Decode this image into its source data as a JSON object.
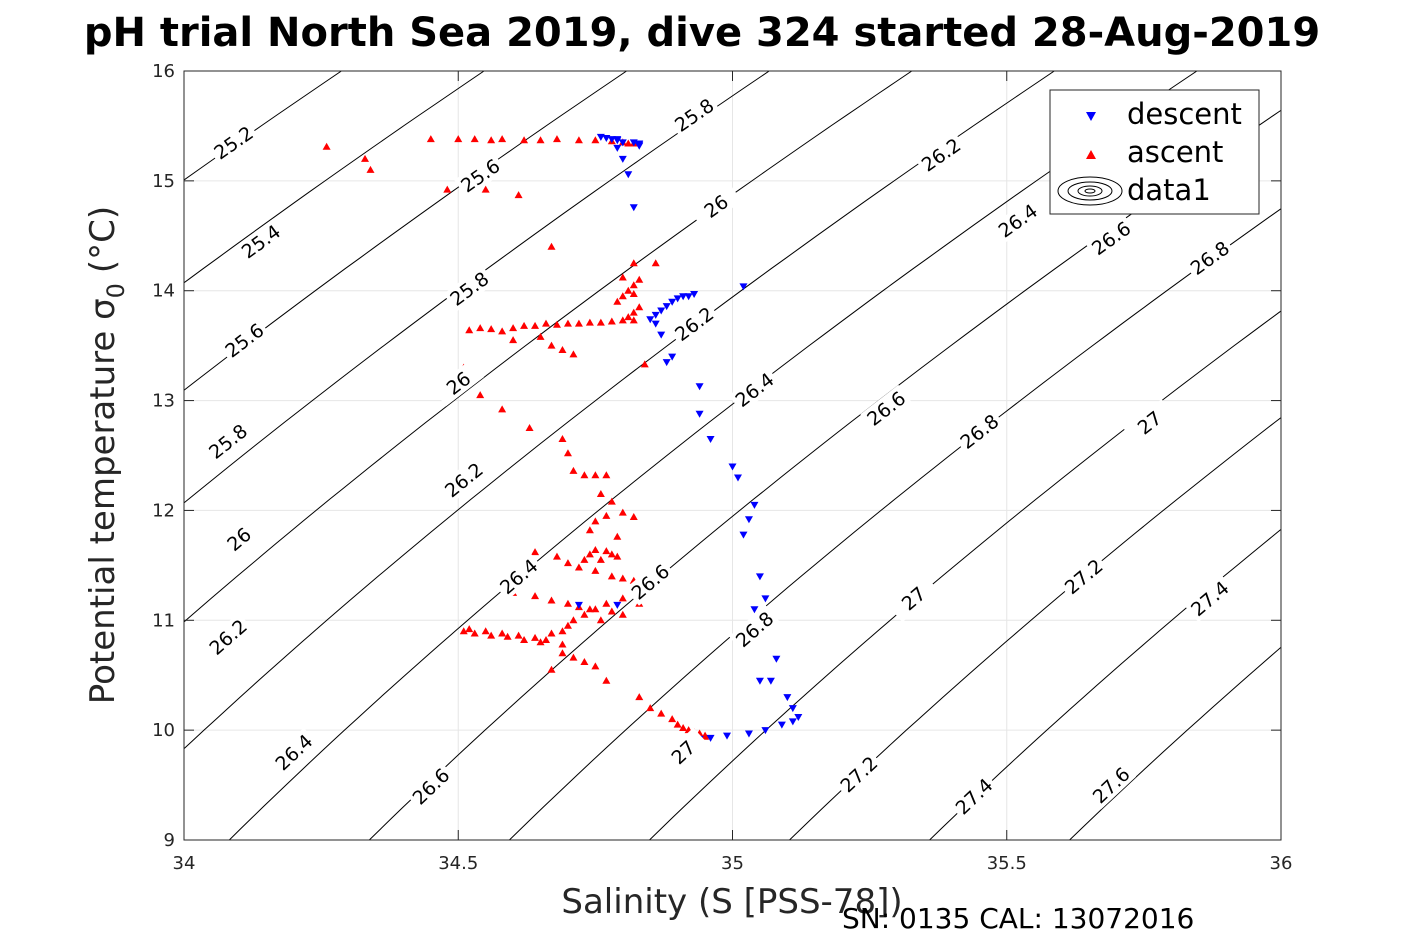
{
  "chart_data": {
    "type": "scatter",
    "title": "pH trial North Sea 2019, dive 324 started 28-Aug-2019",
    "xlabel": "Salinity (S [PSS-78])",
    "ylabel": "Potential temperature σ",
    "ylabel_subscript": "0",
    "ylabel_unit": "(°C)",
    "footer": "SN: 0135  CAL: 13072016",
    "xlim": [
      34,
      36
    ],
    "ylim": [
      9,
      16
    ],
    "xticks": [
      34,
      34.5,
      35,
      35.5,
      36
    ],
    "yticks": [
      9,
      10,
      11,
      12,
      13,
      14,
      15,
      16
    ],
    "xtick_labels": [
      "34",
      "34.5",
      "35",
      "35.5",
      "36"
    ],
    "ytick_labels": [
      "9",
      "10",
      "11",
      "12",
      "13",
      "14",
      "15",
      "16"
    ],
    "grid": true,
    "legend_position": "top-right",
    "legend": [
      "descent",
      "ascent",
      "data1"
    ],
    "colors": {
      "descent": "#0000ff",
      "ascent": "#ff0000",
      "contour": "#000000",
      "grid": "#e6e6e6"
    },
    "series": [
      {
        "name": "descent",
        "marker": "triangle-down",
        "x": [
          34.76,
          34.77,
          34.78,
          34.79,
          34.8,
          34.79,
          34.8,
          34.81,
          34.82,
          34.83,
          34.83,
          34.79,
          34.82,
          34.83,
          35.02,
          34.85,
          34.86,
          34.87,
          34.88,
          34.89,
          34.9,
          34.91,
          34.92,
          34.93,
          34.86,
          34.88,
          34.89,
          34.87,
          34.94,
          34.94,
          34.96,
          35.01,
          35.0,
          35.04,
          35.03,
          35.02,
          35.05,
          35.06,
          35.05,
          35.04,
          35.05,
          35.04,
          35.08,
          35.05,
          35.07,
          35.1,
          35.11,
          35.12,
          35.11,
          35.09,
          35.06,
          35.03,
          34.99,
          34.96,
          34.94,
          34.72,
          34.79
        ],
        "y": [
          15.4,
          15.39,
          15.38,
          15.38,
          15.35,
          15.3,
          15.2,
          15.06,
          14.76,
          15.32,
          15.34,
          15.37,
          15.35,
          15.33,
          14.04,
          13.74,
          13.78,
          13.82,
          13.86,
          13.9,
          13.93,
          13.95,
          13.95,
          13.97,
          13.7,
          13.35,
          13.4,
          13.6,
          13.13,
          12.88,
          12.65,
          12.3,
          12.4,
          12.05,
          11.92,
          11.78,
          11.4,
          11.2,
          11.0,
          10.85,
          10.9,
          11.1,
          10.65,
          10.45,
          10.45,
          10.3,
          10.2,
          10.12,
          10.08,
          10.05,
          10.0,
          9.97,
          9.95,
          9.93,
          9.92,
          11.14,
          11.14
        ]
      },
      {
        "name": "ascent",
        "marker": "triangle-up",
        "x": [
          34.26,
          34.33,
          34.34,
          34.45,
          34.5,
          34.53,
          34.56,
          34.58,
          34.62,
          34.65,
          34.68,
          34.72,
          34.75,
          34.78,
          34.8,
          34.81,
          34.82,
          34.48,
          34.52,
          34.55,
          34.61,
          34.67,
          34.8,
          34.82,
          34.52,
          34.54,
          34.56,
          34.58,
          34.6,
          34.62,
          34.64,
          34.66,
          34.68,
          34.7,
          34.72,
          34.74,
          34.76,
          34.78,
          34.8,
          34.82,
          34.81,
          34.82,
          34.83,
          34.79,
          34.8,
          34.81,
          34.82,
          34.83,
          34.82,
          34.84,
          34.86,
          34.6,
          34.65,
          34.67,
          34.69,
          34.71,
          34.51,
          34.52,
          34.54,
          34.58,
          34.63,
          34.69,
          34.7,
          34.71,
          34.73,
          34.75,
          34.77,
          34.76,
          34.78,
          34.74,
          34.75,
          34.77,
          34.8,
          34.82,
          34.79,
          34.73,
          34.74,
          34.76,
          34.79,
          34.75,
          34.77,
          34.78,
          34.64,
          34.68,
          34.7,
          34.72,
          34.75,
          34.78,
          34.8,
          34.82,
          34.83,
          34.6,
          34.64,
          34.67,
          34.7,
          34.72,
          34.75,
          34.78,
          34.8,
          34.76,
          34.51,
          34.53,
          34.56,
          34.59,
          34.62,
          34.65,
          34.67,
          34.69,
          34.7,
          34.71,
          34.73,
          34.74,
          34.77,
          34.8,
          34.83,
          34.52,
          34.55,
          34.58,
          34.61,
          34.64,
          34.66,
          34.69,
          34.69,
          34.71,
          34.73,
          34.75,
          34.67,
          34.77,
          34.83,
          34.85,
          34.87,
          34.89,
          34.9,
          34.91,
          34.92,
          34.93,
          34.94,
          34.94,
          34.95,
          34.95
        ],
        "y": [
          15.31,
          15.2,
          15.1,
          15.38,
          15.38,
          15.38,
          15.37,
          15.38,
          15.37,
          15.37,
          15.38,
          15.37,
          15.37,
          15.36,
          15.35,
          15.34,
          15.34,
          14.92,
          14.94,
          14.92,
          14.87,
          14.4,
          14.12,
          14.25,
          13.64,
          13.66,
          13.65,
          13.63,
          13.66,
          13.68,
          13.68,
          13.7,
          13.69,
          13.7,
          13.7,
          13.71,
          13.71,
          13.72,
          13.73,
          13.73,
          13.76,
          13.8,
          13.85,
          13.9,
          13.95,
          14.0,
          14.05,
          14.1,
          13.97,
          13.33,
          14.25,
          13.55,
          13.58,
          13.5,
          13.46,
          13.42,
          13.3,
          13.18,
          13.05,
          12.92,
          12.75,
          12.65,
          12.52,
          12.36,
          12.32,
          12.32,
          12.32,
          12.15,
          12.08,
          11.82,
          11.9,
          11.95,
          11.98,
          11.94,
          11.76,
          11.55,
          11.6,
          11.55,
          11.58,
          11.64,
          11.63,
          11.6,
          11.62,
          11.58,
          11.52,
          11.48,
          11.45,
          11.4,
          11.38,
          11.36,
          11.33,
          11.25,
          11.22,
          11.18,
          11.15,
          11.12,
          11.1,
          11.08,
          11.05,
          11.0,
          10.9,
          10.88,
          10.86,
          10.85,
          10.82,
          10.8,
          10.88,
          10.9,
          10.95,
          11.0,
          11.05,
          11.1,
          11.15,
          11.2,
          11.15,
          10.92,
          10.9,
          10.88,
          10.86,
          10.84,
          10.82,
          10.78,
          10.7,
          10.66,
          10.62,
          10.58,
          10.55,
          10.45,
          10.3,
          10.2,
          10.15,
          10.1,
          10.05,
          10.02,
          10.0,
          9.98,
          9.97,
          9.96,
          9.95,
          9.94
        ]
      }
    ],
    "contours": {
      "series_name": "data1",
      "levels": [
        25.2,
        25.4,
        25.6,
        25.8,
        26.0,
        26.2,
        26.4,
        26.6,
        26.8,
        27.0,
        27.2,
        27.4,
        27.6
      ],
      "labels": [
        {
          "text": "25.2",
          "s": 34.09,
          "t": 15.35
        },
        {
          "text": "25.4",
          "s": 34.14,
          "t": 14.45
        },
        {
          "text": "25.6",
          "s": 34.11,
          "t": 13.55
        },
        {
          "text": "25.8",
          "s": 34.08,
          "t": 12.63
        },
        {
          "text": "26",
          "s": 34.1,
          "t": 11.74
        },
        {
          "text": "26.2",
          "s": 34.08,
          "t": 10.85
        },
        {
          "text": "26.4",
          "s": 34.2,
          "t": 9.8
        },
        {
          "text": "26.6",
          "s": 34.45,
          "t": 9.49
        },
        {
          "text": "25.6",
          "s": 34.54,
          "t": 15.05
        },
        {
          "text": "25.8",
          "s": 34.93,
          "t": 15.6
        },
        {
          "text": "25.8",
          "s": 34.52,
          "t": 14.02
        },
        {
          "text": "26",
          "s": 34.97,
          "t": 14.77
        },
        {
          "text": "26",
          "s": 34.5,
          "t": 13.16
        },
        {
          "text": "26.2",
          "s": 34.51,
          "t": 12.28
        },
        {
          "text": "26.4",
          "s": 34.61,
          "t": 11.4
        },
        {
          "text": "26.6",
          "s": 34.85,
          "t": 11.35
        },
        {
          "text": "26.2",
          "s": 34.93,
          "t": 13.7
        },
        {
          "text": "26.4",
          "s": 35.04,
          "t": 13.1
        },
        {
          "text": "26.8",
          "s": 35.04,
          "t": 10.92
        },
        {
          "text": "27",
          "s": 34.91,
          "t": 9.8
        },
        {
          "text": "26.2",
          "s": 35.38,
          "t": 15.24
        },
        {
          "text": "26.4",
          "s": 35.52,
          "t": 14.64
        },
        {
          "text": "26.6",
          "s": 35.69,
          "t": 14.48
        },
        {
          "text": "26.8",
          "s": 35.87,
          "t": 14.3
        },
        {
          "text": "26.6",
          "s": 35.28,
          "t": 12.93
        },
        {
          "text": "26.8",
          "s": 35.45,
          "t": 12.72
        },
        {
          "text": "27",
          "s": 35.76,
          "t": 12.8
        },
        {
          "text": "27",
          "s": 35.33,
          "t": 11.2
        },
        {
          "text": "27.2",
          "s": 35.64,
          "t": 11.4
        },
        {
          "text": "27.4",
          "s": 35.87,
          "t": 11.2
        },
        {
          "text": "27.2",
          "s": 35.23,
          "t": 9.6
        },
        {
          "text": "27.4",
          "s": 35.44,
          "t": 9.4
        },
        {
          "text": "27.6",
          "s": 35.69,
          "t": 9.5
        }
      ]
    }
  }
}
